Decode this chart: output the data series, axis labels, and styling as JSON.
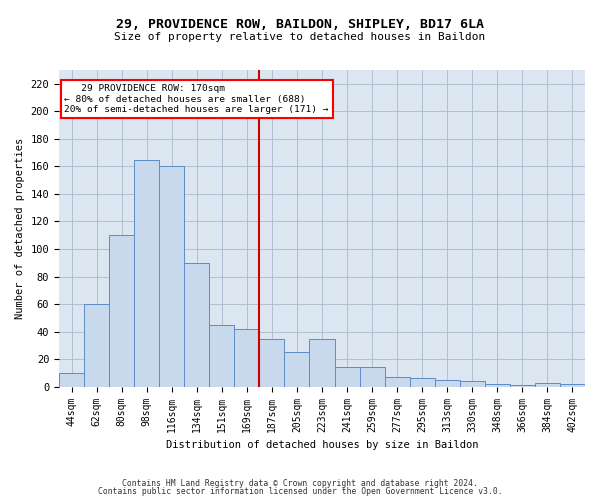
{
  "title_line1": "29, PROVIDENCE ROW, BAILDON, SHIPLEY, BD17 6LA",
  "title_line2": "Size of property relative to detached houses in Baildon",
  "xlabel": "Distribution of detached houses by size in Baildon",
  "ylabel": "Number of detached properties",
  "categories": [
    "44sqm",
    "62sqm",
    "80sqm",
    "98sqm",
    "116sqm",
    "134sqm",
    "151sqm",
    "169sqm",
    "187sqm",
    "205sqm",
    "223sqm",
    "241sqm",
    "259sqm",
    "277sqm",
    "295sqm",
    "313sqm",
    "330sqm",
    "348sqm",
    "366sqm",
    "384sqm",
    "402sqm"
  ],
  "values": [
    10,
    60,
    110,
    165,
    160,
    90,
    45,
    42,
    35,
    25,
    35,
    14,
    14,
    7,
    6,
    5,
    4,
    2,
    1,
    3,
    2
  ],
  "bar_color": "#c8d9ed",
  "bar_edge_color": "#5b8cc8",
  "grid_color": "#aab8cc",
  "background_color": "#dce6f1",
  "annotation_lines": [
    "   29 PROVIDENCE ROW: 170sqm",
    "← 80% of detached houses are smaller (688)",
    "20% of semi-detached houses are larger (171) →"
  ],
  "vline_color": "#cc0000",
  "vline_x": 7.5,
  "ylim": [
    0,
    230
  ],
  "yticks": [
    0,
    20,
    40,
    60,
    80,
    100,
    120,
    140,
    160,
    180,
    200,
    220
  ],
  "footer_line1": "Contains HM Land Registry data © Crown copyright and database right 2024.",
  "footer_line2": "Contains public sector information licensed under the Open Government Licence v3.0."
}
